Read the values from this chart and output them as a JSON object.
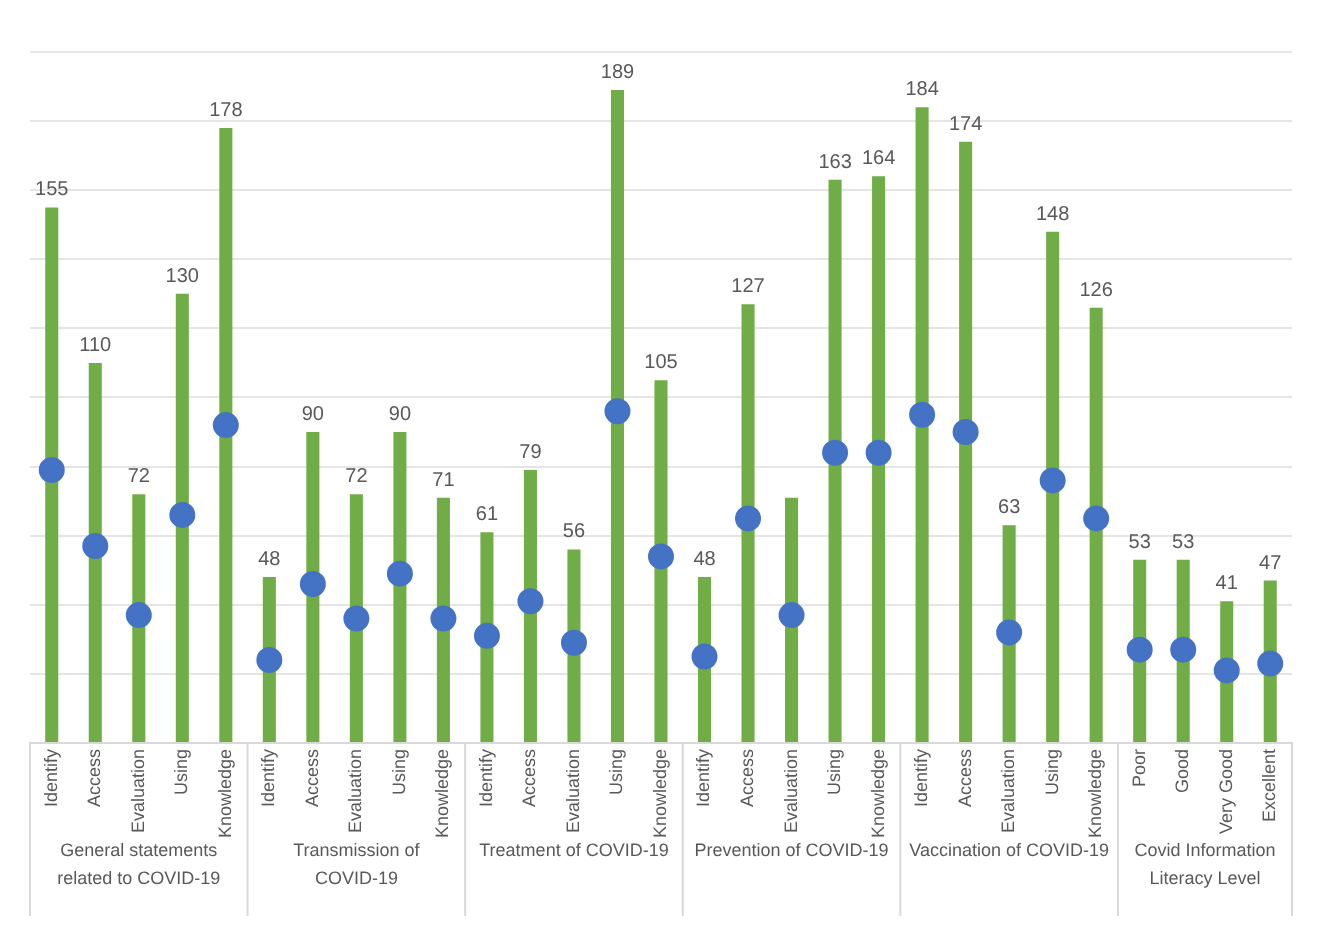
{
  "chart_data": {
    "type": "bar",
    "categories": [
      "Identify",
      "Access",
      "Evaluation",
      "Using",
      "Knowledge",
      "Identify",
      "Access",
      "Evaluation",
      "Using",
      "Knowledge",
      "Identify",
      "Access",
      "Evaluation",
      "Using",
      "Knowledge",
      "Identify",
      "Access",
      "Evaluation",
      "Using",
      "Knowledge",
      "Identify",
      "Access",
      "Evaluation",
      "Using",
      "Knowledge",
      "Poor",
      "Good",
      "Very Good",
      "Excellent"
    ],
    "series": [
      {
        "color": "#70ad47",
        "values": [
          155,
          110,
          72,
          130,
          178,
          48,
          90,
          72,
          90,
          71,
          61,
          79,
          56,
          189,
          105,
          48,
          127,
          71,
          163,
          164,
          184,
          174,
          63,
          148,
          126,
          53,
          53,
          41,
          47
        ],
        "value_labels": [
          "155",
          "110",
          "72",
          "130",
          "178",
          "48",
          "90",
          "72",
          "90",
          "71",
          "61",
          "79",
          "56",
          "189",
          "105",
          "48",
          "127",
          null,
          "163",
          "164",
          "184",
          "174",
          "63",
          "148",
          "126",
          "53",
          "53",
          "41",
          "47"
        ]
      },
      {
        "type": "scatter",
        "color": "#4472c4",
        "marker": "circle",
        "values": [
          79,
          57,
          37,
          66,
          92,
          24,
          46,
          36,
          49,
          36,
          31,
          41,
          29,
          96,
          54,
          25,
          65,
          37,
          84,
          84,
          95,
          90,
          32,
          76,
          65,
          27,
          27,
          21,
          23
        ]
      }
    ],
    "annotations": [
      "General statements related to COVID-19",
      "Transmission of COVID-19",
      "Treatment of COVID-19",
      "Prevention of COVID-19",
      "Vaccination of COVID-19",
      "Covid Information Literacy Level"
    ],
    "ylim": [
      0,
      200
    ],
    "yticks": [
      {
        "value": 0,
        "label": null
      },
      {
        "value": 20,
        "label": null
      },
      {
        "value": 40,
        "label": null
      },
      {
        "value": 60,
        "label": null
      },
      {
        "value": 80,
        "label": null
      },
      {
        "value": 100,
        "label": null
      },
      {
        "value": 120,
        "label": null
      },
      {
        "value": 140,
        "label": null
      },
      {
        "value": 160,
        "label": null
      },
      {
        "value": 180,
        "label": null
      },
      {
        "value": 200,
        "label": null
      }
    ],
    "tick_labels": "x",
    "grid": "y",
    "legend": false
  }
}
